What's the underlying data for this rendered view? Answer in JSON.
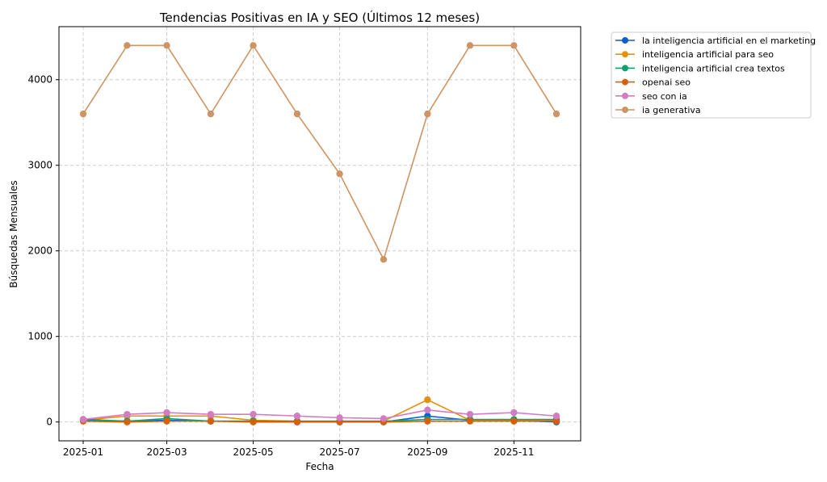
{
  "chart_data": {
    "type": "line",
    "title": "Tendencias Positivas en IA y SEO (Últimos 12 meses)",
    "xlabel": "Fecha",
    "ylabel": "Búsquedas Mensuales",
    "x": [
      "2025-01-01",
      "2025-02-01",
      "2025-03-01",
      "2025-04-01",
      "2025-05-01",
      "2025-06-01",
      "2025-07-01",
      "2025-08-01",
      "2025-09-01",
      "2025-10-01",
      "2025-11-01",
      "2025-12-01"
    ],
    "xticks": [
      "2025-01",
      "2025-03",
      "2025-05",
      "2025-07",
      "2025-09",
      "2025-11"
    ],
    "yticks": [
      0,
      1000,
      2000,
      3000,
      4000
    ],
    "ylim": [
      -220,
      4620
    ],
    "grid": true,
    "legend_placement": "outside-top-right",
    "series": [
      {
        "name": "la inteligencia artificial en el marketing",
        "color": "#0b5fd0",
        "values": [
          20,
          10,
          20,
          10,
          10,
          0,
          0,
          0,
          70,
          20,
          20,
          0
        ]
      },
      {
        "name": "inteligencia artificial para seo",
        "color": "#e8900a",
        "values": [
          20,
          70,
          70,
          70,
          20,
          10,
          10,
          10,
          260,
          20,
          20,
          20
        ]
      },
      {
        "name": "inteligencia artificial crea textos",
        "color": "#10a070",
        "values": [
          30,
          10,
          40,
          10,
          10,
          10,
          10,
          10,
          30,
          30,
          30,
          30
        ]
      },
      {
        "name": "openai seo",
        "color": "#d85f08",
        "values": [
          10,
          0,
          10,
          10,
          0,
          0,
          0,
          0,
          10,
          10,
          10,
          10
        ]
      },
      {
        "name": "seo con ia",
        "color": "#d27cc4",
        "values": [
          30,
          90,
          110,
          90,
          90,
          70,
          50,
          40,
          140,
          90,
          110,
          70
        ]
      },
      {
        "name": "ia generativa",
        "color": "#cf9463",
        "values": [
          3600,
          4400,
          4400,
          3600,
          4400,
          3600,
          2900,
          1900,
          3600,
          4400,
          4400,
          3600
        ]
      }
    ]
  }
}
